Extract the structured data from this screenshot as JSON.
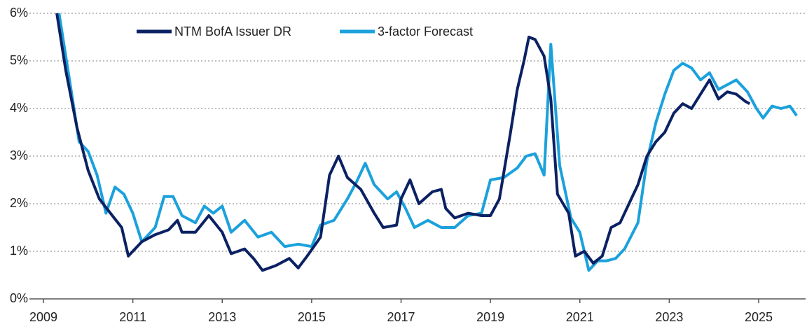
{
  "chart_data": {
    "type": "line",
    "xlim": [
      2009,
      2026.05
    ],
    "xticks": [
      2009,
      2011,
      2013,
      2015,
      2017,
      2019,
      2021,
      2023,
      2025
    ],
    "ylim": [
      0,
      6
    ],
    "yticks": [
      {
        "value": 0,
        "label": "0%"
      },
      {
        "value": 1,
        "label": "1%"
      },
      {
        "value": 2,
        "label": "2%"
      },
      {
        "value": 3,
        "label": "3%"
      },
      {
        "value": 4,
        "label": "4%"
      },
      {
        "value": 5,
        "label": "5%"
      },
      {
        "value": 6,
        "label": "6%"
      }
    ],
    "grid": true,
    "legend": "top",
    "series": [
      {
        "name": "NTM BofA Issuer DR",
        "color": "#0b2163",
        "x": [
          2009.3,
          2009.5,
          2009.75,
          2010.0,
          2010.25,
          2010.5,
          2010.75,
          2010.9,
          2011.2,
          2011.5,
          2011.8,
          2012.0,
          2012.1,
          2012.4,
          2012.7,
          2013.0,
          2013.2,
          2013.5,
          2013.7,
          2013.9,
          2014.2,
          2014.5,
          2014.7,
          2014.9,
          2015.2,
          2015.4,
          2015.6,
          2015.8,
          2016.1,
          2016.4,
          2016.6,
          2016.9,
          2017.0,
          2017.2,
          2017.4,
          2017.7,
          2017.9,
          2018.0,
          2018.2,
          2018.5,
          2018.8,
          2019.0,
          2019.2,
          2019.45,
          2019.6,
          2019.75,
          2019.86,
          2020.0,
          2020.2,
          2020.35,
          2020.5,
          2020.75,
          2020.9,
          2021.1,
          2021.3,
          2021.5,
          2021.7,
          2021.9,
          2022.1,
          2022.3,
          2022.5,
          2022.7,
          2022.9,
          2023.1,
          2023.3,
          2023.5,
          2023.7,
          2023.9,
          2024.1,
          2024.3,
          2024.5,
          2024.7,
          2024.8
        ],
        "values": [
          6.0,
          4.8,
          3.6,
          2.7,
          2.1,
          1.8,
          1.5,
          0.9,
          1.2,
          1.35,
          1.45,
          1.65,
          1.4,
          1.4,
          1.75,
          1.4,
          0.95,
          1.05,
          0.85,
          0.6,
          0.7,
          0.85,
          0.65,
          0.9,
          1.3,
          2.6,
          3.0,
          2.55,
          2.3,
          1.8,
          1.5,
          1.55,
          2.1,
          2.5,
          2.0,
          2.25,
          2.3,
          1.9,
          1.7,
          1.8,
          1.75,
          1.75,
          2.1,
          3.5,
          4.4,
          5.0,
          5.5,
          5.45,
          5.1,
          4.2,
          2.2,
          1.8,
          0.9,
          1.0,
          0.75,
          0.9,
          1.5,
          1.6,
          2.0,
          2.4,
          3.0,
          3.3,
          3.5,
          3.9,
          4.1,
          4.0,
          4.3,
          4.6,
          4.2,
          4.35,
          4.3,
          4.15,
          4.1
        ]
      },
      {
        "name": "3-factor Forecast",
        "color": "#1ba1dc",
        "x": [
          2009.35,
          2009.6,
          2009.8,
          2010.0,
          2010.2,
          2010.4,
          2010.6,
          2010.8,
          2011.0,
          2011.2,
          2011.5,
          2011.7,
          2011.9,
          2012.1,
          2012.4,
          2012.6,
          2012.8,
          2013.0,
          2013.2,
          2013.5,
          2013.8,
          2014.1,
          2014.4,
          2014.7,
          2015.0,
          2015.2,
          2015.5,
          2015.8,
          2016.0,
          2016.2,
          2016.4,
          2016.7,
          2016.9,
          2017.1,
          2017.3,
          2017.6,
          2017.9,
          2018.2,
          2018.5,
          2018.8,
          2019.0,
          2019.3,
          2019.6,
          2019.8,
          2020.0,
          2020.2,
          2020.35,
          2020.55,
          2020.8,
          2021.0,
          2021.2,
          2021.4,
          2021.6,
          2021.8,
          2022.0,
          2022.3,
          2022.5,
          2022.7,
          2022.9,
          2023.1,
          2023.3,
          2023.5,
          2023.7,
          2023.9,
          2024.1,
          2024.3,
          2024.5,
          2024.75,
          2024.95,
          2025.1,
          2025.3,
          2025.5,
          2025.7,
          2025.85
        ],
        "values": [
          6.0,
          4.5,
          3.3,
          3.1,
          2.6,
          1.8,
          2.35,
          2.2,
          1.8,
          1.2,
          1.5,
          2.15,
          2.15,
          1.75,
          1.6,
          1.95,
          1.8,
          1.95,
          1.4,
          1.65,
          1.3,
          1.4,
          1.1,
          1.15,
          1.1,
          1.55,
          1.65,
          2.1,
          2.45,
          2.85,
          2.4,
          2.1,
          2.25,
          1.9,
          1.5,
          1.65,
          1.5,
          1.5,
          1.75,
          1.8,
          2.5,
          2.55,
          2.75,
          3.0,
          3.05,
          2.6,
          5.35,
          2.8,
          1.7,
          1.4,
          0.6,
          0.8,
          0.8,
          0.85,
          1.05,
          1.6,
          2.9,
          3.7,
          4.3,
          4.8,
          4.95,
          4.85,
          4.6,
          4.75,
          4.4,
          4.5,
          4.6,
          4.35,
          4.0,
          3.8,
          4.05,
          4.0,
          4.05,
          3.85
        ]
      }
    ]
  }
}
